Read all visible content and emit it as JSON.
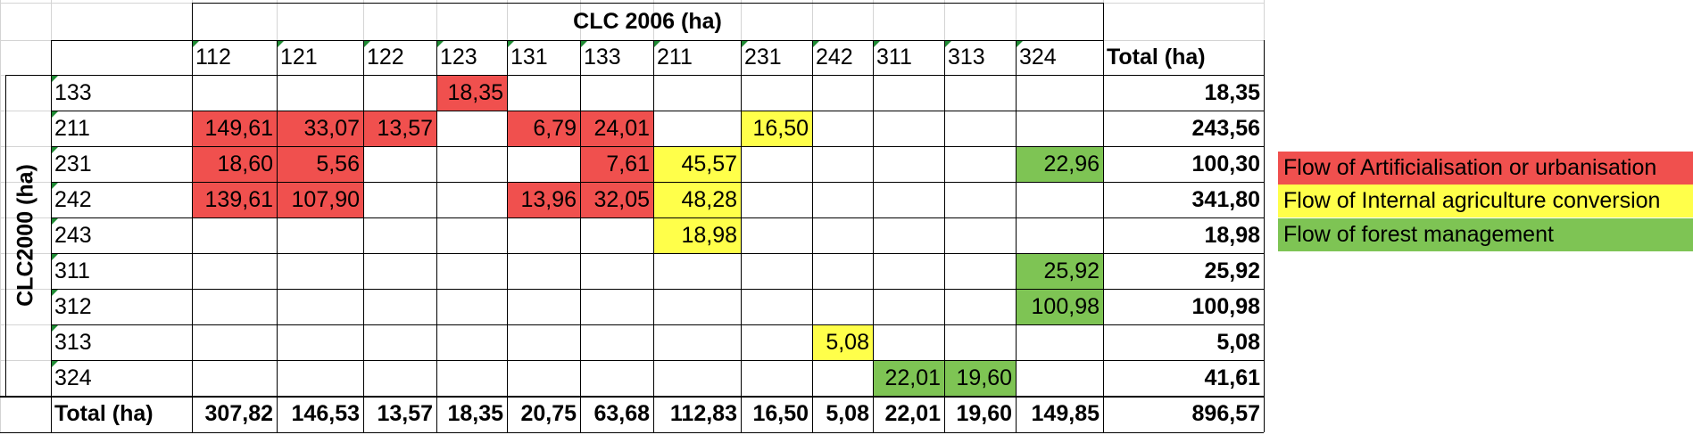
{
  "title": "CLC 2006 (ha)",
  "row_axis_title": "CLC2000 (ha)",
  "total_header": "Total (ha)",
  "columns": [
    "112",
    "121",
    "122",
    "123",
    "131",
    "133",
    "211",
    "231",
    "242",
    "311",
    "313",
    "324"
  ],
  "rows": [
    {
      "code": "133",
      "cells": [
        "",
        "",
        "",
        "18,35",
        "",
        "",
        "",
        "",
        "",
        "",
        "",
        ""
      ],
      "total": "18,35"
    },
    {
      "code": "211",
      "cells": [
        "149,61",
        "33,07",
        "13,57",
        "",
        "6,79",
        "24,01",
        "",
        "16,50",
        "",
        "",
        "",
        ""
      ],
      "total": "243,56"
    },
    {
      "code": "231",
      "cells": [
        "18,60",
        "5,56",
        "",
        "",
        "",
        "7,61",
        "45,57",
        "",
        "",
        "",
        "",
        "22,96"
      ],
      "total": "100,30"
    },
    {
      "code": "242",
      "cells": [
        "139,61",
        "107,90",
        "",
        "",
        "13,96",
        "32,05",
        "48,28",
        "",
        "",
        "",
        "",
        ""
      ],
      "total": "341,80"
    },
    {
      "code": "243",
      "cells": [
        "",
        "",
        "",
        "",
        "",
        "",
        "18,98",
        "",
        "",
        "",
        "",
        ""
      ],
      "total": "18,98"
    },
    {
      "code": "311",
      "cells": [
        "",
        "",
        "",
        "",
        "",
        "",
        "",
        "",
        "",
        "",
        "",
        "25,92"
      ],
      "total": "25,92"
    },
    {
      "code": "312",
      "cells": [
        "",
        "",
        "",
        "",
        "",
        "",
        "",
        "",
        "",
        "",
        "",
        "100,98"
      ],
      "total": "100,98"
    },
    {
      "code": "313",
      "cells": [
        "",
        "",
        "",
        "",
        "",
        "",
        "",
        "",
        "5,08",
        "",
        "",
        ""
      ],
      "total": "5,08"
    },
    {
      "code": "324",
      "cells": [
        "",
        "",
        "",
        "",
        "",
        "",
        "",
        "",
        "",
        "22,01",
        "19,60",
        ""
      ],
      "total": "41,61"
    }
  ],
  "totals_row": {
    "label": "Total (ha)",
    "cells": [
      "307,82",
      "146,53",
      "13,57",
      "18,35",
      "20,75",
      "63,68",
      "112,83",
      "16,50",
      "5,08",
      "22,01",
      "19,60",
      "149,85"
    ],
    "total": "896,57"
  },
  "cell_colors": [
    {
      "row": 0,
      "col": 3,
      "flow": "red"
    },
    {
      "row": 1,
      "col": 0,
      "flow": "red"
    },
    {
      "row": 1,
      "col": 1,
      "flow": "red"
    },
    {
      "row": 1,
      "col": 2,
      "flow": "red"
    },
    {
      "row": 1,
      "col": 4,
      "flow": "red"
    },
    {
      "row": 1,
      "col": 5,
      "flow": "red"
    },
    {
      "row": 1,
      "col": 7,
      "flow": "yellow"
    },
    {
      "row": 2,
      "col": 0,
      "flow": "red"
    },
    {
      "row": 2,
      "col": 1,
      "flow": "red"
    },
    {
      "row": 2,
      "col": 5,
      "flow": "red"
    },
    {
      "row": 2,
      "col": 6,
      "flow": "yellow"
    },
    {
      "row": 2,
      "col": 11,
      "flow": "green"
    },
    {
      "row": 3,
      "col": 0,
      "flow": "red"
    },
    {
      "row": 3,
      "col": 1,
      "flow": "red"
    },
    {
      "row": 3,
      "col": 4,
      "flow": "red"
    },
    {
      "row": 3,
      "col": 5,
      "flow": "red"
    },
    {
      "row": 3,
      "col": 6,
      "flow": "yellow"
    },
    {
      "row": 4,
      "col": 6,
      "flow": "yellow"
    },
    {
      "row": 5,
      "col": 11,
      "flow": "green"
    },
    {
      "row": 6,
      "col": 11,
      "flow": "green"
    },
    {
      "row": 7,
      "col": 8,
      "flow": "yellow"
    },
    {
      "row": 8,
      "col": 9,
      "flow": "green"
    },
    {
      "row": 8,
      "col": 10,
      "flow": "green"
    }
  ],
  "colors": {
    "red": "#f0504e",
    "yellow": "#ffff4a",
    "green": "#7ec454"
  },
  "legend": [
    {
      "flow": "red",
      "label": "Flow of Artificialisation or urbanisation"
    },
    {
      "flow": "yellow",
      "label": "Flow of Internal agriculture conversion"
    },
    {
      "flow": "green",
      "label": "Flow of forest management"
    }
  ]
}
